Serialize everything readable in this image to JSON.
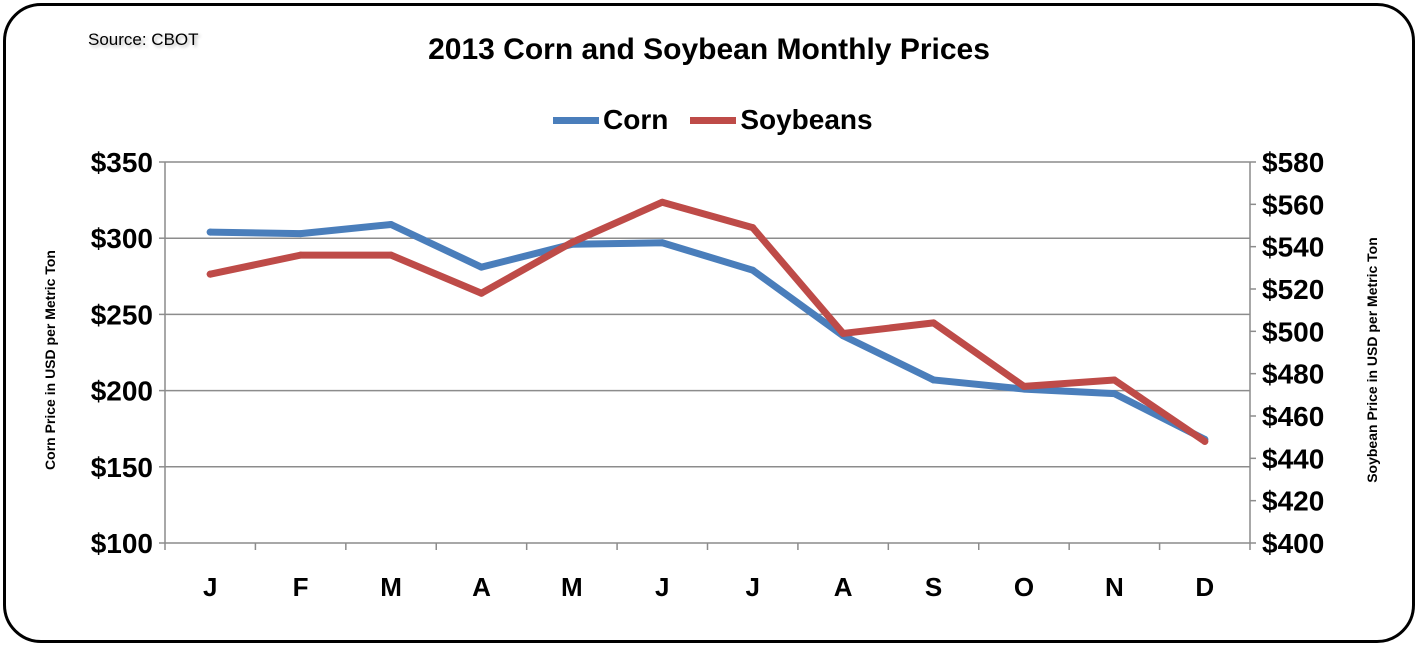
{
  "source": "Source: CBOT",
  "chart_data": {
    "type": "line",
    "title": "2013 Corn and Soybean Monthly Prices",
    "categories": [
      "J",
      "F",
      "M",
      "A",
      "M",
      "J",
      "J",
      "A",
      "S",
      "O",
      "N",
      "D"
    ],
    "series": [
      {
        "name": "Corn",
        "axis": "left",
        "color": "#4a7ebb",
        "values": [
          304,
          303,
          309,
          281,
          296,
          297,
          279,
          236,
          207,
          201,
          198,
          168
        ]
      },
      {
        "name": "Soybeans",
        "axis": "right",
        "color": "#be4b48",
        "values": [
          527,
          536,
          536,
          518,
          542,
          561,
          549,
          499,
          504,
          474,
          477,
          448
        ]
      }
    ],
    "y_left": {
      "label": "Corn Price in USD per Metric Ton",
      "range": [
        100,
        350
      ],
      "ticks": [
        "$100",
        "$150",
        "$200",
        "$250",
        "$300",
        "$350"
      ]
    },
    "y_right": {
      "label": "Soybean Price in USD per Metric Ton",
      "range": [
        400,
        580
      ],
      "ticks": [
        "$400",
        "$420",
        "$440",
        "$460",
        "$480",
        "$500",
        "$520",
        "$540",
        "$560",
        "$580"
      ]
    },
    "grid": true,
    "legend_position": "top"
  }
}
